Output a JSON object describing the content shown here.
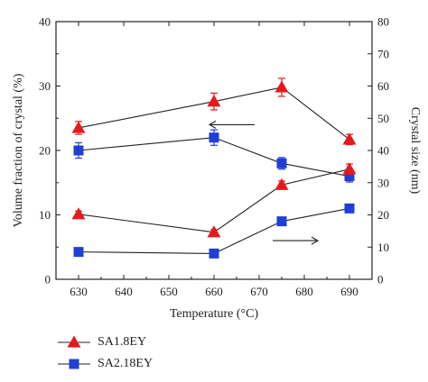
{
  "chart_data": {
    "type": "line",
    "xlabel": "Temperature (°C)",
    "ylabel_left": "Volume fraction of crystal (%)",
    "ylabel_right": "Crystal size (nm)",
    "xlim": [
      625,
      695
    ],
    "xticks": [
      630,
      640,
      650,
      660,
      670,
      680,
      690
    ],
    "ylim_left": [
      0,
      40
    ],
    "yticks_left": [
      0,
      10,
      20,
      30,
      40
    ],
    "ylim_right": [
      0,
      80
    ],
    "yticks_right": [
      0,
      10,
      20,
      30,
      40,
      50,
      60,
      70,
      80
    ],
    "x": [
      630,
      660,
      675,
      690
    ],
    "series": [
      {
        "name": "SA1.8EY",
        "marker": "triangle",
        "color": "#e31a1c",
        "axis": "left",
        "values": [
          23.5,
          27.6,
          29.8,
          21.7
        ],
        "errors": [
          1.0,
          1.3,
          1.4,
          0.8
        ]
      },
      {
        "name": "SA2.18EY",
        "marker": "square",
        "color": "#1f3fd6",
        "axis": "left",
        "values": [
          20.0,
          22.0,
          18.0,
          16.0
        ],
        "errors": [
          1.2,
          1.2,
          0.9,
          0.9
        ]
      },
      {
        "name": "SA1.8EY",
        "marker": "triangle",
        "color": "#e31a1c",
        "axis": "right",
        "values": [
          20.2,
          14.6,
          29.3,
          34.2
        ],
        "errors": [
          1.0,
          0.8,
          1.2,
          1.6
        ]
      },
      {
        "name": "SA2.18EY",
        "marker": "square",
        "color": "#1f3fd6",
        "axis": "right",
        "values": [
          8.5,
          8.0,
          18.0,
          22.0
        ],
        "errors": [
          0.5,
          0.5,
          1.0,
          1.3
        ]
      }
    ],
    "legend_position": "bottom-left",
    "arrows": [
      {
        "direction": "left",
        "x_from": 669,
        "x_to": 659,
        "y_left": 24.0
      },
      {
        "direction": "right",
        "x_from": 673,
        "x_to": 683,
        "y_left": 6.0
      }
    ]
  },
  "legend": [
    {
      "label": "SA1.8EY",
      "marker": "triangle",
      "color": "#e31a1c"
    },
    {
      "label": "SA2.18EY",
      "marker": "square",
      "color": "#1f3fd6"
    }
  ]
}
